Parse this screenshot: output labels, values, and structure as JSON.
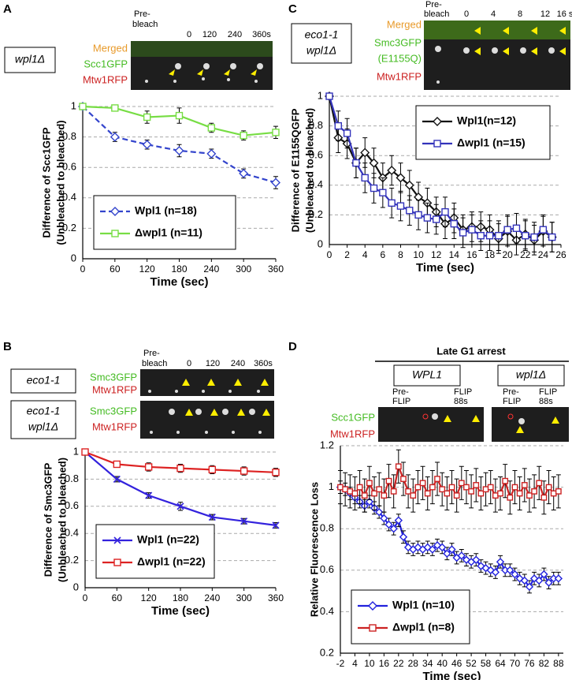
{
  "panels": [
    {
      "letter": "A",
      "strain": "wpl1Δ",
      "channels": [
        "Merged",
        "Scc1GFP",
        "Mtw1RFP"
      ],
      "prebleach": [
        "Pre-",
        "bleach"
      ],
      "times": [
        "0",
        "120",
        "240",
        "360s"
      ]
    },
    {
      "letter": "B",
      "strains": [
        "eco1-1",
        [
          "eco1-1",
          "wpl1Δ"
        ]
      ],
      "channels": [
        "Smc3GFP",
        "Mtw1RFP",
        "Smc3GFP",
        "Mtw1RFP"
      ],
      "prebleach": [
        "Pre-",
        "bleach"
      ],
      "times": [
        "0",
        "120",
        "240",
        "360s"
      ]
    },
    {
      "letter": "C",
      "strain": [
        "eco1-1",
        "wpl1Δ"
      ],
      "channels": [
        "Merged",
        "Smc3GFP",
        "(E1155Q)",
        "Mtw1RFP"
      ],
      "prebleach": [
        "Pre-",
        "bleach"
      ],
      "times": [
        "0",
        "4",
        "8",
        "12",
        "16 s"
      ]
    },
    {
      "letter": "D",
      "header": "Late G1 arrest",
      "groups": [
        {
          "strain": "WPL1",
          "conditions": [
            [
              "Pre-",
              "FLIP"
            ],
            [
              "FLIP",
              "88s"
            ]
          ]
        },
        {
          "strain": "wpl1Δ",
          "conditions": [
            [
              "Pre-",
              "FLIP"
            ],
            [
              "FLIP",
              "88s"
            ]
          ]
        }
      ],
      "channels": [
        "Scc1GFP",
        "Mtw1RFP"
      ]
    }
  ],
  "chart_data": [
    {
      "type": "line",
      "xlabel": "Time (sec)",
      "ylabel": [
        "Difference of Scc1GFP",
        "(Unbleached to bleached)"
      ],
      "x": [
        0,
        60,
        120,
        180,
        240,
        300,
        360
      ],
      "xlim": [
        0,
        360
      ],
      "xticks": [
        0,
        60,
        120,
        180,
        240,
        300,
        360
      ],
      "ylim": [
        0,
        1
      ],
      "yticks": [
        0,
        0.2,
        0.4,
        0.6,
        0.8,
        1
      ],
      "grid": true,
      "legend": "lower left",
      "series": [
        {
          "name": "Wpl1 (n=18)",
          "color": "#3344cc",
          "marker": "diamond",
          "linestyle": "dashed",
          "values": [
            1,
            0.8,
            0.75,
            0.71,
            0.69,
            0.56,
            0.5
          ],
          "errors": [
            0.01,
            0.03,
            0.03,
            0.04,
            0.03,
            0.03,
            0.04
          ]
        },
        {
          "name": "Δwpl1 (n=11)",
          "color": "#77dd44",
          "marker": "square",
          "linestyle": "solid",
          "values": [
            1,
            0.99,
            0.93,
            0.94,
            0.86,
            0.81,
            0.83
          ],
          "errors": [
            0.01,
            0.02,
            0.04,
            0.05,
            0.03,
            0.03,
            0.04
          ]
        }
      ]
    },
    {
      "type": "line",
      "xlabel": "Time (sec)",
      "ylabel": [
        "Difference of Smc3GFP",
        "(Unbleached to bleached)"
      ],
      "x": [
        0,
        60,
        120,
        180,
        240,
        300,
        360
      ],
      "xlim": [
        0,
        360
      ],
      "xticks": [
        0,
        60,
        120,
        180,
        240,
        300,
        360
      ],
      "ylim": [
        0,
        1
      ],
      "yticks": [
        0,
        0.2,
        0.4,
        0.6,
        0.8,
        1
      ],
      "grid": true,
      "legend": "lower left",
      "series": [
        {
          "name": "Wpl1 (n=22)",
          "color": "#3322dd",
          "marker": "x",
          "linestyle": "solid",
          "values": [
            1,
            0.8,
            0.68,
            0.6,
            0.52,
            0.49,
            0.46
          ],
          "errors": [
            0.01,
            0.02,
            0.02,
            0.03,
            0.02,
            0.02,
            0.02
          ]
        },
        {
          "name": "Δwpl1 (n=22)",
          "color": "#dd2222",
          "marker": "square",
          "linestyle": "solid",
          "values": [
            1,
            0.91,
            0.89,
            0.88,
            0.87,
            0.86,
            0.85
          ],
          "errors": [
            0.01,
            0.02,
            0.03,
            0.03,
            0.03,
            0.03,
            0.03
          ]
        }
      ]
    },
    {
      "type": "line",
      "xlabel": "Time (sec)",
      "ylabel": [
        "Difference of E1155QGFP",
        "(Unbleached to bleached)"
      ],
      "x": [
        0,
        1,
        2,
        3,
        4,
        5,
        6,
        7,
        8,
        9,
        10,
        11,
        12,
        13,
        14,
        15,
        16,
        17,
        18,
        19,
        20,
        21,
        22,
        23,
        24,
        25
      ],
      "xlim": [
        0,
        26
      ],
      "xticks": [
        0,
        2,
        4,
        6,
        8,
        10,
        12,
        14,
        16,
        18,
        20,
        22,
        24,
        26
      ],
      "ylim": [
        0,
        1
      ],
      "yticks": [
        0,
        0.2,
        0.4,
        0.6,
        0.8,
        1
      ],
      "grid": true,
      "legend": "upper right",
      "series": [
        {
          "name": "Wpl1(n=12)",
          "color": "#111111",
          "marker": "diamond",
          "linestyle": "solid",
          "values": [
            1,
            0.72,
            0.68,
            0.55,
            0.62,
            0.55,
            0.45,
            0.5,
            0.45,
            0.4,
            0.32,
            0.28,
            0.22,
            0.14,
            0.18,
            0.1,
            0.12,
            0.12,
            0.1,
            0.04,
            0.09,
            0.03,
            0.07,
            0.03,
            0.09,
            0.05
          ],
          "errors": [
            0.01,
            0.1,
            0.1,
            0.1,
            0.1,
            0.1,
            0.1,
            0.1,
            0.1,
            0.1,
            0.1,
            0.1,
            0.1,
            0.1,
            0.1,
            0.1,
            0.1,
            0.1,
            0.1,
            0.1,
            0.1,
            0.1,
            0.1,
            0.1,
            0.1,
            0.1
          ]
        },
        {
          "name": "Δwpl1 (n=15)",
          "color": "#3333bb",
          "marker": "square",
          "linestyle": "solid",
          "values": [
            1,
            0.8,
            0.75,
            0.55,
            0.45,
            0.38,
            0.35,
            0.28,
            0.26,
            0.23,
            0.2,
            0.18,
            0.17,
            0.22,
            0.14,
            0.08,
            0.1,
            0.06,
            0.06,
            0.06,
            0.1,
            0.11,
            0.06,
            0.05,
            0.1,
            0.05
          ],
          "errors": [
            0.01,
            0.1,
            0.1,
            0.1,
            0.1,
            0.1,
            0.1,
            0.1,
            0.1,
            0.1,
            0.1,
            0.1,
            0.1,
            0.1,
            0.1,
            0.1,
            0.1,
            0.1,
            0.1,
            0.1,
            0.1,
            0.1,
            0.1,
            0.1,
            0.1,
            0.1
          ]
        }
      ]
    },
    {
      "type": "line",
      "xlabel": "Time (sec)",
      "ylabel": [
        "Relative Fluorescence Loss"
      ],
      "x": [
        -2,
        0,
        2,
        4,
        6,
        8,
        10,
        12,
        14,
        16,
        18,
        20,
        22,
        24,
        26,
        28,
        30,
        32,
        34,
        36,
        38,
        40,
        42,
        44,
        46,
        48,
        50,
        52,
        54,
        56,
        58,
        60,
        62,
        64,
        66,
        68,
        70,
        72,
        74,
        76,
        78,
        80,
        82,
        84,
        86,
        88
      ],
      "xlim": [
        -2,
        90
      ],
      "xticks": [
        -2,
        4,
        10,
        16,
        22,
        28,
        34,
        40,
        46,
        52,
        58,
        64,
        70,
        76,
        82,
        88
      ],
      "ylim": [
        0.2,
        1.2
      ],
      "yticks": [
        0.2,
        0.4,
        0.6,
        0.8,
        1,
        1.2
      ],
      "grid": true,
      "legend": "lower left",
      "series": [
        {
          "name": "Wpl1 (n=10)",
          "color": "#2222dd",
          "marker": "diamond",
          "linestyle": "solid",
          "values": [
            1,
            0.99,
            0.97,
            0.95,
            0.93,
            0.91,
            0.93,
            0.9,
            0.88,
            0.85,
            0.82,
            0.8,
            0.84,
            0.76,
            0.71,
            0.7,
            0.71,
            0.7,
            0.71,
            0.7,
            0.72,
            0.71,
            0.68,
            0.7,
            0.66,
            0.67,
            0.65,
            0.64,
            0.65,
            0.62,
            0.61,
            0.6,
            0.59,
            0.64,
            0.6,
            0.6,
            0.58,
            0.56,
            0.55,
            0.52,
            0.56,
            0.55,
            0.58,
            0.54,
            0.56,
            0.56
          ],
          "errors": [
            0.03,
            0.03,
            0.03,
            0.03,
            0.03,
            0.03,
            0.03,
            0.03,
            0.03,
            0.03,
            0.03,
            0.03,
            0.03,
            0.03,
            0.03,
            0.03,
            0.03,
            0.03,
            0.03,
            0.03,
            0.03,
            0.03,
            0.03,
            0.03,
            0.03,
            0.03,
            0.03,
            0.03,
            0.03,
            0.03,
            0.03,
            0.03,
            0.03,
            0.03,
            0.03,
            0.03,
            0.03,
            0.03,
            0.03,
            0.03,
            0.03,
            0.03,
            0.03,
            0.03,
            0.03,
            0.03
          ]
        },
        {
          "name": "Δwpl1 (n=8)",
          "color": "#cc2222",
          "marker": "square",
          "linestyle": "solid",
          "values": [
            1,
            0.99,
            0.98,
            0.97,
            1,
            0.96,
            1.02,
            0.97,
            0.99,
            0.96,
            1.03,
            0.98,
            1.1,
            1.04,
            0.98,
            0.96,
            1,
            1.02,
            0.97,
            1,
            1.04,
            0.99,
            0.97,
            1,
            0.96,
            1.02,
            1,
            0.98,
            1.01,
            0.97,
            0.99,
            1,
            0.96,
            0.97,
            1.03,
            0.95,
            1,
            0.97,
            1.01,
            0.96,
            0.98,
            1.02,
            0.95,
            1,
            0.97,
            0.98
          ],
          "errors": [
            0.08,
            0.08,
            0.08,
            0.08,
            0.08,
            0.08,
            0.08,
            0.08,
            0.08,
            0.08,
            0.08,
            0.08,
            0.08,
            0.08,
            0.08,
            0.08,
            0.08,
            0.08,
            0.08,
            0.08,
            0.08,
            0.08,
            0.08,
            0.08,
            0.08,
            0.08,
            0.08,
            0.08,
            0.08,
            0.08,
            0.08,
            0.08,
            0.08,
            0.08,
            0.08,
            0.08,
            0.08,
            0.08,
            0.08,
            0.08,
            0.08,
            0.08,
            0.08,
            0.08,
            0.08,
            0.08
          ]
        }
      ]
    }
  ]
}
